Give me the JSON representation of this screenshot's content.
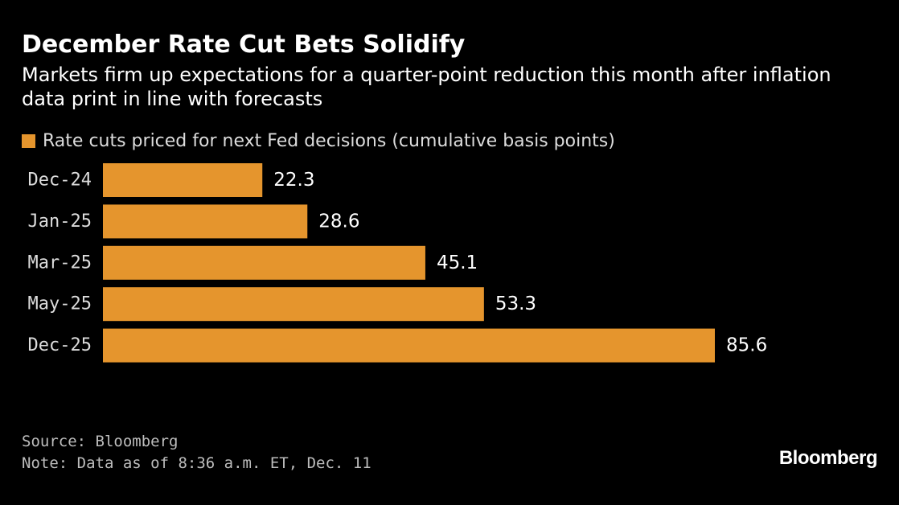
{
  "header": {
    "title": "December Rate Cut Bets Solidify",
    "subtitle": "Markets firm up expectations for a quarter-point reduction this month after inflation data print in line with forecasts"
  },
  "legend": {
    "label": "Rate cuts priced for next Fed decisions (cumulative basis points)"
  },
  "colors": {
    "background": "#000000",
    "bar": "#e5952d",
    "text": "#ffffff",
    "muted_text": "#dcdcdc"
  },
  "chart_data": {
    "type": "bar",
    "orientation": "horizontal",
    "categories": [
      "Dec-24",
      "Jan-25",
      "Mar-25",
      "May-25",
      "Dec-25"
    ],
    "series": [
      {
        "name": "Rate cuts priced for next Fed decisions (cumulative basis points)",
        "values": [
          22.3,
          28.6,
          45.1,
          53.3,
          85.6
        ]
      }
    ],
    "value_labels": [
      "22.3",
      "28.6",
      "45.1",
      "53.3",
      "85.6"
    ],
    "xlim": [
      0,
      85.6
    ],
    "grid": false,
    "legend_position": "top-left"
  },
  "footer": {
    "source": "Source: Bloomberg",
    "note": "Note: Data as of 8:36 a.m. ET, Dec. 11",
    "brand": "Bloomberg"
  }
}
